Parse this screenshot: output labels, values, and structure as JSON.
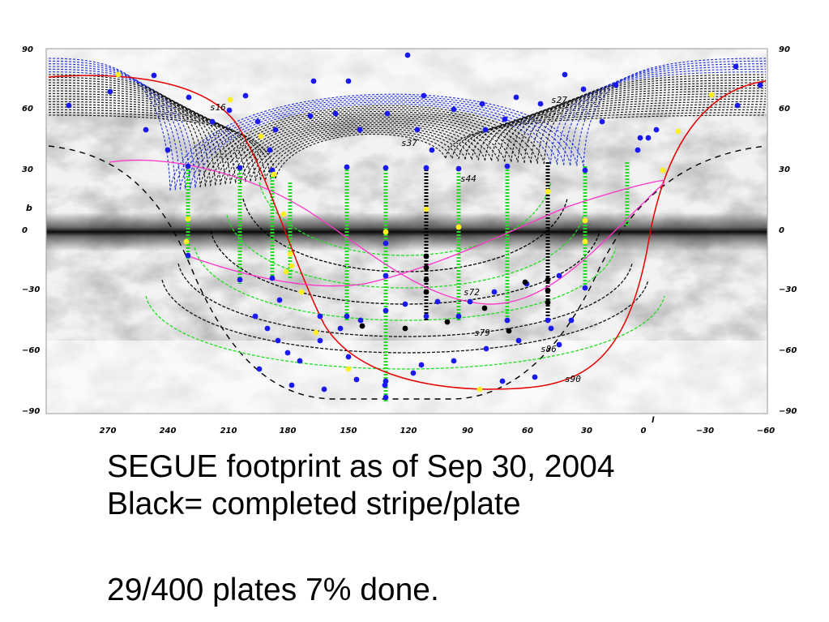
{
  "figure": {
    "b_axis_label": "b",
    "l_axis_label": "l",
    "b_ticks_left": [
      "90",
      "60",
      "30",
      "0",
      "−30",
      "−60",
      "−90"
    ],
    "b_ticks_right": [
      "90",
      "60",
      "30",
      "0",
      "−30",
      "−60",
      "−90"
    ],
    "l_ticks": [
      "270",
      "240",
      "210",
      "180",
      "150",
      "120",
      "90",
      "60",
      "30",
      "0",
      "−30",
      "−60"
    ],
    "stripe_labels": [
      "s16",
      "s27",
      "s37",
      "s44",
      "s72",
      "s79",
      "s86",
      "s90"
    ],
    "colors": {
      "north_stripes_outer": "#1f2fd6",
      "stripes": "#111111",
      "low_latitude_plates": "#22dd22",
      "completed": "#000000",
      "plates": "#1a1af0",
      "highlight_plates": "#ffee22",
      "ecliptic": "#e60000",
      "magenta_curve": "#ff33cc",
      "dashed_boundary": "#000000"
    }
  },
  "caption": {
    "line1": "SEGUE footprint as of Sep 30, 2004",
    "line2": "Black= completed stripe/plate",
    "line3": "29/400 plates 7% done."
  }
}
